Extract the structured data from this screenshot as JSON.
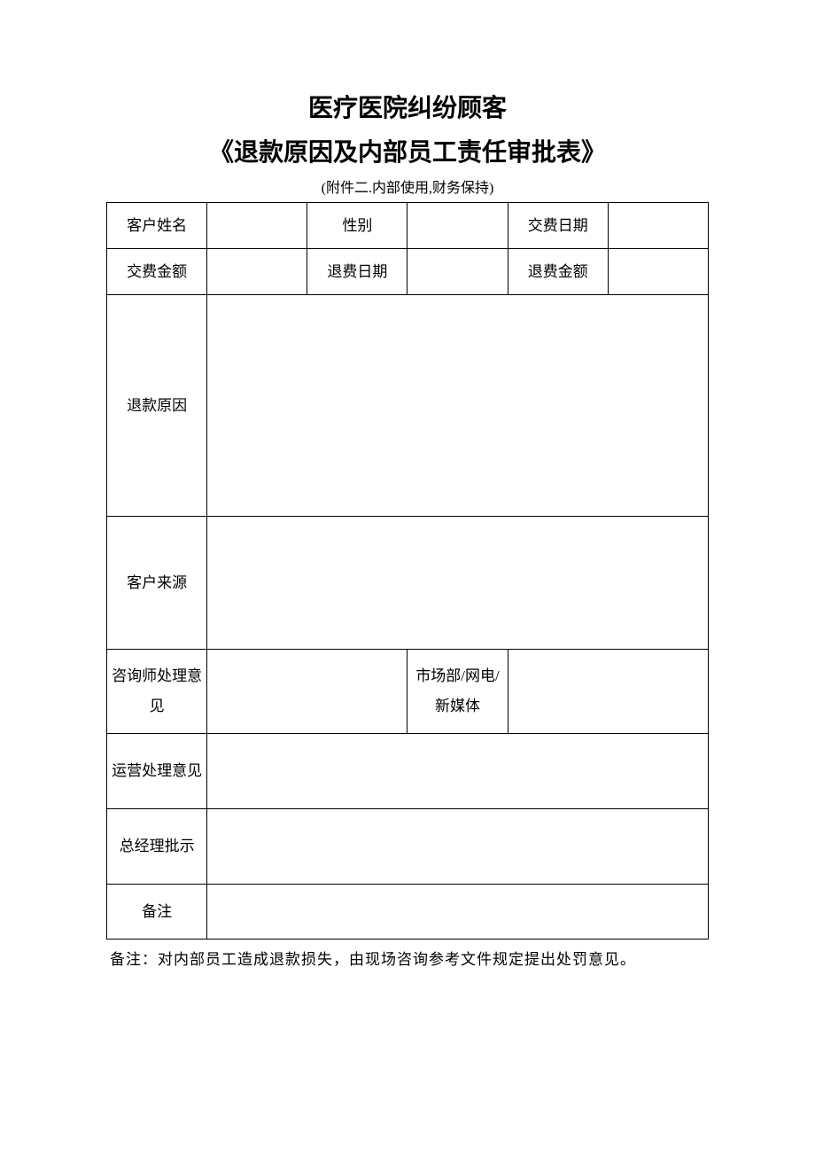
{
  "title": {
    "line1": "医疗医院纠纷顾客",
    "line2": "《退款原因及内部员工责任审批表》",
    "subtitle": "(附件二.内部使用,财务保持)"
  },
  "table": {
    "row1": {
      "customerNameLabel": "客户姓名",
      "customerNameValue": "",
      "genderLabel": "性别",
      "genderValue": "",
      "paymentDateLabel": "交费日期",
      "paymentDateValue": ""
    },
    "row2": {
      "paymentAmountLabel": "交费金额",
      "paymentAmountValue": "",
      "refundDateLabel": "退费日期",
      "refundDateValue": "",
      "refundAmountLabel": "退费金额",
      "refundAmountValue": ""
    },
    "row3": {
      "refundReasonLabel": "退款原因",
      "refundReasonValue": ""
    },
    "row4": {
      "customerSourceLabel": "客户来源",
      "customerSourceValue": ""
    },
    "row5": {
      "consultantOpinionLabel": "咨询师处理意见",
      "consultantOpinionValue": "",
      "marketDeptLabel": "市场部/网电/新媒体",
      "marketDeptValue": ""
    },
    "row6": {
      "operationsOpinionLabel": "运营处理意见",
      "operationsOpinionValue": ""
    },
    "row7": {
      "gmApprovalLabel": "总经理批示",
      "gmApprovalValue": ""
    },
    "row8": {
      "remarkLabel": "备注",
      "remarkValue": ""
    }
  },
  "footnote": "备注：对内部员工造成退款损失，由现场咨询参考文件规定提出处罚意见。",
  "styling": {
    "pageWidth": 920,
    "pageHeight": 1302,
    "backgroundColor": "#ffffff",
    "textColor": "#000000",
    "borderColor": "#000000",
    "titleFontSize": 28,
    "titleFontWeight": "bold",
    "subtitleFontSize": 16,
    "cellFontSize": 17,
    "footnoteFontSize": 17,
    "fontFamily": "SimSun"
  }
}
